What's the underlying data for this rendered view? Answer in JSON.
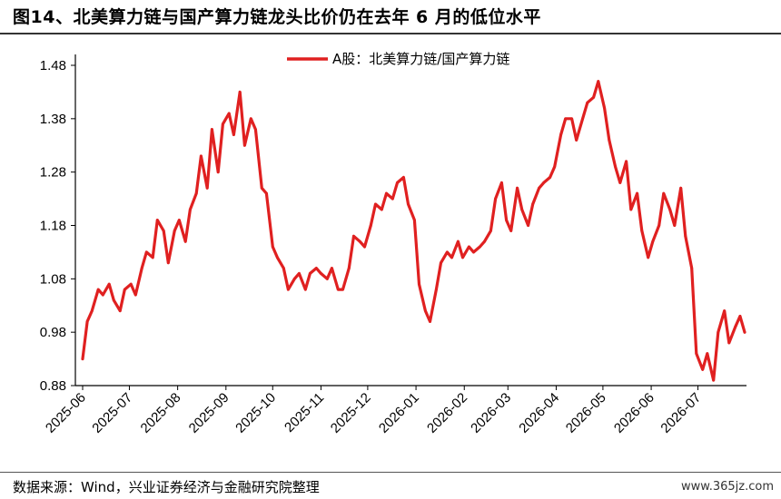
{
  "header": {
    "title": "图14、北美算力链与国产算力链龙头比价仍在去年 6 月的低位水平"
  },
  "footer": {
    "source": "数据来源：Wind，兴业证券经济与金融研究院整理",
    "watermark": "www.365jz.com"
  },
  "colors": {
    "series": "#e02020",
    "axis": "#000000"
  },
  "chart_data": {
    "type": "line",
    "title": "",
    "xlabel": "",
    "ylabel": "",
    "ylim": [
      0.88,
      1.48
    ],
    "yticks": [
      "0.88",
      "0.98",
      "1.08",
      "1.18",
      "1.28",
      "1.38",
      "1.48"
    ],
    "x_tick_labels": [
      "2025-06",
      "2025-07",
      "2025-08",
      "2025-09",
      "2025-10",
      "2025-11",
      "2025-12",
      "2026-01",
      "2026-02",
      "2026-03",
      "2026-04",
      "2026-05",
      "2026-06",
      "2026-07"
    ],
    "legend": {
      "position": "top-center"
    },
    "series": [
      {
        "name": "A股：北美算力链/国产算力链",
        "x": [
          "2025-06-01",
          "2025-06-04",
          "2025-06-07",
          "2025-06-11",
          "2025-06-14",
          "2025-06-18",
          "2025-06-21",
          "2025-06-25",
          "2025-06-28",
          "2025-07-02",
          "2025-07-05",
          "2025-07-09",
          "2025-07-12",
          "2025-07-16",
          "2025-07-19",
          "2025-07-23",
          "2025-07-26",
          "2025-07-30",
          "2025-08-02",
          "2025-08-06",
          "2025-08-09",
          "2025-08-13",
          "2025-08-16",
          "2025-08-20",
          "2025-08-23",
          "2025-08-27",
          "2025-08-30",
          "2025-09-03",
          "2025-09-06",
          "2025-09-10",
          "2025-09-13",
          "2025-09-17",
          "2025-09-20",
          "2025-09-24",
          "2025-09-27",
          "2025-10-01",
          "2025-10-04",
          "2025-10-08",
          "2025-10-11",
          "2025-10-15",
          "2025-10-18",
          "2025-10-22",
          "2025-10-25",
          "2025-10-29",
          "2025-11-01",
          "2025-11-05",
          "2025-11-08",
          "2025-11-12",
          "2025-11-15",
          "2025-11-19",
          "2025-11-22",
          "2025-11-26",
          "2025-11-29",
          "2025-12-03",
          "2025-12-06",
          "2025-12-10",
          "2025-12-13",
          "2025-12-17",
          "2025-12-20",
          "2025-12-24",
          "2025-12-27",
          "2025-12-31",
          "2026-01-03",
          "2026-01-07",
          "2026-01-10",
          "2026-01-14",
          "2026-01-17",
          "2026-01-21",
          "2026-01-24",
          "2026-01-28",
          "2026-01-31",
          "2026-02-04",
          "2026-02-07",
          "2026-02-11",
          "2026-02-14",
          "2026-02-18",
          "2026-02-21",
          "2026-02-25",
          "2026-02-28",
          "2026-03-03",
          "2026-03-07",
          "2026-03-10",
          "2026-03-14",
          "2026-03-17",
          "2026-03-21",
          "2026-03-24",
          "2026-03-28",
          "2026-03-31",
          "2026-04-04",
          "2026-04-07",
          "2026-04-11",
          "2026-04-14",
          "2026-04-18",
          "2026-04-21",
          "2026-04-25",
          "2026-04-28",
          "2026-05-02",
          "2026-05-05",
          "2026-05-09",
          "2026-05-12",
          "2026-05-16",
          "2026-05-19",
          "2026-05-23",
          "2026-05-26",
          "2026-05-30",
          "2026-06-02",
          "2026-06-06",
          "2026-06-09",
          "2026-06-13",
          "2026-06-16",
          "2026-06-20",
          "2026-06-23",
          "2026-06-27",
          "2026-06-30",
          "2026-07-04",
          "2026-07-07",
          "2026-07-11",
          "2026-07-14",
          "2026-07-18",
          "2026-07-21",
          "2026-07-25",
          "2026-07-28",
          "2026-07-31"
        ],
        "values": [
          0.93,
          1.0,
          1.02,
          1.06,
          1.05,
          1.07,
          1.04,
          1.02,
          1.06,
          1.07,
          1.05,
          1.1,
          1.13,
          1.12,
          1.19,
          1.17,
          1.11,
          1.17,
          1.19,
          1.15,
          1.21,
          1.24,
          1.31,
          1.25,
          1.36,
          1.28,
          1.37,
          1.39,
          1.35,
          1.43,
          1.33,
          1.38,
          1.36,
          1.25,
          1.24,
          1.14,
          1.12,
          1.1,
          1.06,
          1.08,
          1.09,
          1.06,
          1.09,
          1.1,
          1.09,
          1.08,
          1.1,
          1.06,
          1.06,
          1.1,
          1.16,
          1.15,
          1.14,
          1.18,
          1.22,
          1.21,
          1.24,
          1.23,
          1.26,
          1.27,
          1.22,
          1.19,
          1.07,
          1.02,
          1.0,
          1.06,
          1.11,
          1.13,
          1.12,
          1.15,
          1.12,
          1.14,
          1.13,
          1.14,
          1.15,
          1.17,
          1.23,
          1.26,
          1.19,
          1.17,
          1.25,
          1.21,
          1.18,
          1.22,
          1.25,
          1.26,
          1.27,
          1.29,
          1.35,
          1.38,
          1.38,
          1.34,
          1.38,
          1.41,
          1.42,
          1.45,
          1.4,
          1.34,
          1.29,
          1.26,
          1.3,
          1.21,
          1.24,
          1.17,
          1.12,
          1.15,
          1.18,
          1.24,
          1.21,
          1.18,
          1.25,
          1.16,
          1.1,
          0.94,
          0.91,
          0.94,
          0.89,
          0.98,
          1.02,
          0.96,
          0.99,
          1.01,
          0.98
        ]
      }
    ]
  }
}
